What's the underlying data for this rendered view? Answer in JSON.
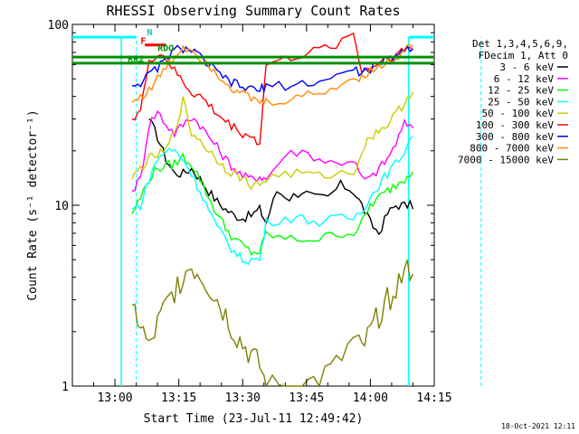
{
  "chart_data": {
    "type": "line",
    "title": "RHESSI Observing Summary Count Rates",
    "xlabel": "Start Time (23-Jul-11 12:49:42)",
    "ylabel": "Count Rate (s⁻¹ detector⁻¹)",
    "yscale": "log",
    "ylim": [
      1,
      100
    ],
    "xlim_minutes": [
      -10,
      75
    ],
    "x_tick_labels": [
      "13:00",
      "13:15",
      "13:30",
      "13:45",
      "14:00",
      "14:15"
    ],
    "x_tick_minutes": [
      0,
      15,
      30,
      45,
      60,
      75
    ],
    "y_tick_labels": [
      "1",
      "10",
      "100"
    ],
    "y_tick_values": [
      1,
      10,
      100
    ],
    "legend_header": [
      "Det 1,3,4,5,6,9,",
      "FDecim 1, Att 0"
    ],
    "legend_placement": "right",
    "series": [
      {
        "name": "3 - 6 keV",
        "color": "#000000",
        "x": [
          8,
          10,
          12,
          14,
          16,
          18,
          20,
          22,
          24,
          26,
          28,
          30,
          32,
          34,
          35.5,
          38,
          41,
          44,
          47,
          50,
          53,
          56,
          58,
          60,
          62,
          64,
          66,
          68,
          70
        ],
        "y": [
          30,
          24,
          18,
          15,
          15,
          16,
          14,
          12,
          10.5,
          9.5,
          8.8,
          8.5,
          8.8,
          9.5,
          8,
          12,
          11,
          12,
          11,
          11,
          13,
          12,
          10,
          8,
          7,
          9,
          10,
          10,
          10
        ]
      },
      {
        "name": "6 - 12 keV",
        "color": "#ff00ff",
        "x": [
          4,
          6,
          8,
          10,
          12,
          14,
          16,
          18,
          20,
          22,
          24,
          26,
          28,
          30,
          32,
          34,
          35.5,
          40,
          44,
          48,
          52,
          56,
          58,
          60,
          62,
          64,
          66,
          68,
          70
        ],
        "y": [
          12,
          14,
          28,
          33,
          28,
          25,
          28,
          31,
          28,
          24,
          21,
          18,
          16,
          14.5,
          14,
          14.5,
          14,
          19,
          20,
          18,
          17,
          18,
          14,
          14,
          16,
          18,
          22,
          28,
          28
        ]
      },
      {
        "name": "12 - 25 keV",
        "color": "#00ff00",
        "x": [
          4,
          6,
          8,
          10,
          12,
          14,
          16,
          18,
          20,
          22,
          24,
          26,
          28,
          30,
          32,
          34,
          35.5,
          40,
          44,
          48,
          52,
          56,
          58,
          60,
          62,
          64,
          66,
          68,
          70
        ],
        "y": [
          9,
          11,
          14,
          16,
          16.5,
          17,
          18.5,
          17,
          14,
          11,
          9,
          7.5,
          6.5,
          6,
          5.5,
          5.5,
          7,
          6.5,
          6.5,
          6.5,
          7,
          7,
          8,
          10,
          11,
          12,
          13,
          14,
          16
        ]
      },
      {
        "name": "25 - 50 keV",
        "color": "#00ffff",
        "x": [
          4,
          6,
          8,
          10,
          12,
          14,
          16,
          18,
          20,
          22,
          24,
          26,
          28,
          30,
          32,
          34,
          35.5,
          40,
          44,
          48,
          52,
          56,
          58,
          60,
          62,
          64,
          66,
          68,
          70
        ],
        "y": [
          9.5,
          10,
          14,
          18,
          20,
          20,
          18,
          15,
          12,
          9.5,
          7.5,
          6.5,
          5.5,
          5,
          5,
          5,
          8,
          8.5,
          8.5,
          8,
          8.5,
          8.5,
          9.5,
          11,
          13,
          15,
          17,
          20,
          25
        ]
      },
      {
        "name": "50 - 100 keV",
        "color": "#cccc00",
        "x": [
          4,
          6,
          8,
          10,
          12,
          14,
          16,
          18,
          20,
          22,
          24,
          26,
          28,
          30,
          32,
          34,
          35.5,
          40,
          44,
          48,
          52,
          56,
          58,
          60,
          62,
          64,
          66,
          68,
          70
        ],
        "y": [
          14,
          16,
          18,
          19,
          20,
          26,
          38,
          25,
          23,
          20,
          18,
          16,
          15,
          14,
          13,
          13,
          14,
          15,
          15,
          14.5,
          15,
          15,
          20,
          24,
          26,
          28,
          32,
          37,
          44
        ]
      },
      {
        "name": "100 - 300 keV",
        "color": "#ff0000",
        "x": [
          4,
          6,
          8,
          10,
          12,
          14,
          16,
          18,
          20,
          22,
          24,
          26,
          28,
          30,
          32,
          34,
          35.5,
          40,
          44,
          48,
          52,
          56,
          58,
          60,
          62,
          64,
          66,
          68,
          70
        ],
        "y": [
          30,
          34,
          60,
          70,
          65,
          55,
          48,
          42,
          40,
          36,
          32,
          29,
          27,
          25,
          24,
          22,
          60,
          64,
          68,
          72,
          78,
          90,
          55,
          57,
          62,
          66,
          68,
          72,
          75
        ]
      },
      {
        "name": "300 - 800 keV",
        "color": "#0000ff",
        "x": [
          4,
          6,
          8,
          10,
          12,
          14,
          16,
          18,
          20,
          22,
          24,
          26,
          28,
          30,
          32,
          34,
          35.5,
          40,
          44,
          48,
          52,
          56,
          58,
          60,
          62,
          64,
          66,
          68,
          70
        ],
        "y": [
          46,
          48,
          52,
          58,
          64,
          72,
          74,
          72,
          66,
          60,
          54,
          50,
          47,
          45,
          44,
          43,
          46,
          46,
          47,
          48,
          52,
          56,
          54,
          57,
          60,
          64,
          68,
          72,
          76
        ]
      },
      {
        "name": "800 - 7000 keV",
        "color": "#ff8c00",
        "x": [
          4,
          6,
          8,
          10,
          12,
          14,
          16,
          18,
          20,
          22,
          24,
          26,
          28,
          30,
          32,
          34,
          35.5,
          40,
          44,
          48,
          52,
          56,
          58,
          60,
          62,
          64,
          66,
          68,
          70
        ],
        "y": [
          37,
          40,
          43,
          50,
          58,
          66,
          75,
          73,
          66,
          60,
          54,
          48,
          44,
          41,
          39,
          37,
          37,
          38,
          40,
          42,
          45,
          50,
          52,
          55,
          58,
          62,
          66,
          72,
          78
        ]
      },
      {
        "name": "7000 - 15000 keV",
        "color": "#808000",
        "x": [
          4,
          6,
          8,
          10,
          12,
          14,
          16,
          18,
          20,
          22,
          24,
          26,
          28,
          30,
          32,
          34,
          35.5,
          40,
          44,
          48,
          52,
          56,
          58,
          60,
          62,
          64,
          66,
          68,
          70
        ],
        "y": [
          2.8,
          2.2,
          1.6,
          2.2,
          2.8,
          3.4,
          4.2,
          4.6,
          4.2,
          3.6,
          3.0,
          2.5,
          2.0,
          1.7,
          1.5,
          1.3,
          1.0,
          1.0,
          1.0,
          1.1,
          1.3,
          1.8,
          1.6,
          2.0,
          2.5,
          3.0,
          3.6,
          4.2,
          4.6
        ]
      }
    ],
    "annotations": {
      "flag_labels": [
        "F",
        "RDO",
        "N",
        "RR2"
      ],
      "flag_colors": {
        "F": "#ff0000",
        "RDO": "#009000",
        "N": "#00c8c8",
        "RR2": "#009000"
      }
    }
  },
  "footer": {
    "timestamp": "18-Oct-2021 12:11"
  }
}
